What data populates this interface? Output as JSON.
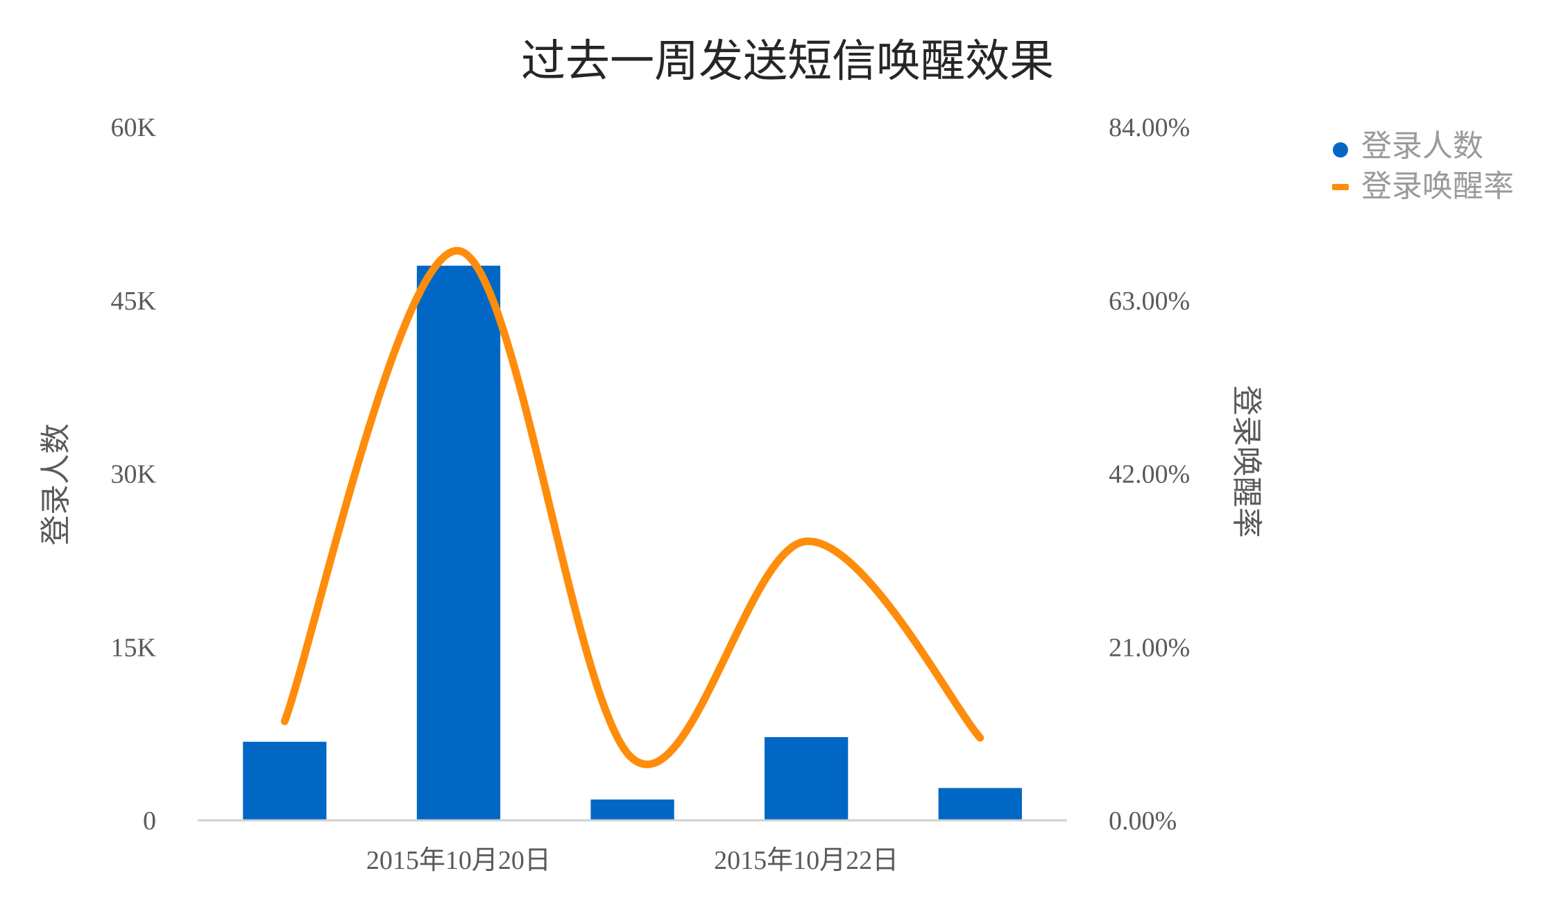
{
  "chart_data": {
    "type": "bar",
    "title": "过去一周发送短信唤醒效果",
    "categories": [
      "",
      "2015年10月20日",
      "",
      "2015年10月22日",
      ""
    ],
    "x_tick_labels": [
      "2015年10月20日",
      "2015年10月22日"
    ],
    "series": [
      {
        "name": "登录人数",
        "type": "bar",
        "axis": "left",
        "color": "#0068C4",
        "values": [
          6800,
          48000,
          1800,
          7200,
          2800
        ]
      },
      {
        "name": "登录唤醒率",
        "type": "line",
        "smooth": true,
        "axis": "right",
        "color": "#FF8C0A",
        "values": [
          0.12,
          0.69,
          0.075,
          0.338,
          0.1
        ]
      }
    ],
    "y_left": {
      "label": "登录人数",
      "min": 0,
      "max": 60000,
      "ticks": [
        0,
        15000,
        30000,
        45000,
        60000
      ],
      "tick_labels": [
        "0",
        "15K",
        "30K",
        "45K",
        "60K"
      ]
    },
    "y_right": {
      "label": "登录唤醒率",
      "min": 0,
      "max": 0.84,
      "ticks": [
        0,
        0.21,
        0.42,
        0.63,
        0.84
      ],
      "tick_labels": [
        "0.00%",
        "21.00%",
        "42.00%",
        "63.00%",
        "84.00%"
      ]
    },
    "grid": false,
    "legend_position": "top-right"
  }
}
